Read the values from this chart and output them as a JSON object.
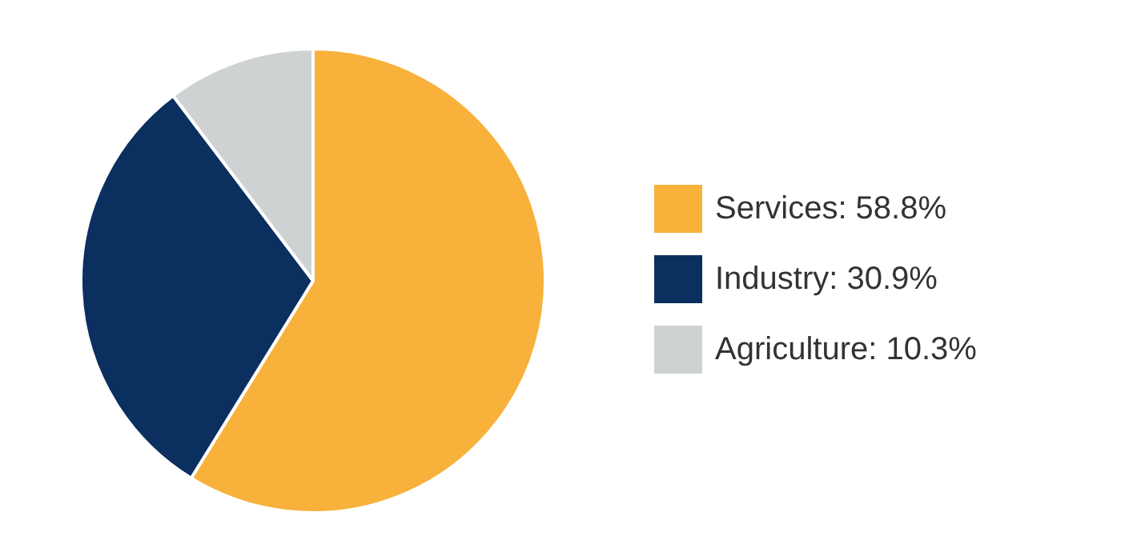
{
  "chart_data": {
    "type": "pie",
    "categories": [
      "Services: 58.8%",
      "Industry: 30.9%",
      "Agriculture: 10.3%"
    ],
    "values": [
      58.8,
      30.9,
      10.3
    ],
    "colors": [
      "#f8b13b",
      "#0b2f5f",
      "#cfd2d3"
    ],
    "legend": "right"
  }
}
